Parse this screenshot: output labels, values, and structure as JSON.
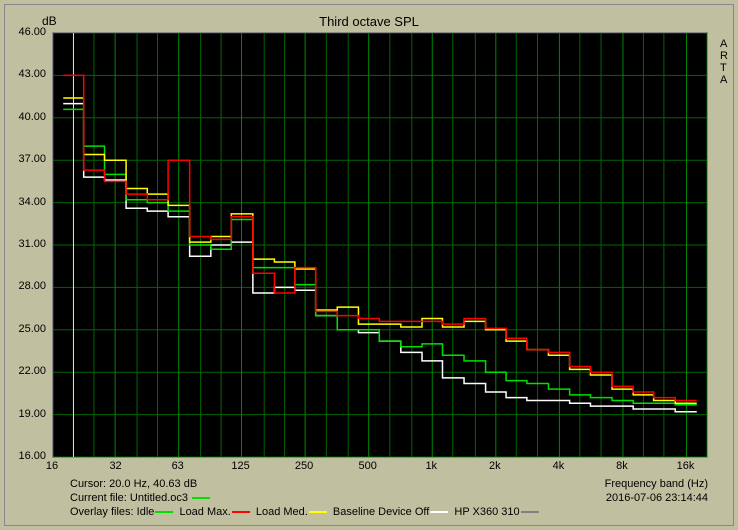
{
  "title": "Third octave SPL",
  "y_axis_label": "dB",
  "x_axis_label": "Frequency band (Hz)",
  "branding": "A\nR\nT\nA",
  "datetime": "2016-07-06  23:14:44",
  "cursor_text": "Cursor:   20.0 Hz, 40.63 dB",
  "current_file_label": "Current file: ",
  "current_file_name": "Untitled.oc3",
  "overlay_label": "Overlay files:",
  "yaxis": {
    "min": 16.0,
    "max": 46.0,
    "ticks": [
      16.0,
      19.0,
      22.0,
      25.0,
      28.0,
      31.0,
      34.0,
      37.0,
      40.0,
      43.0,
      46.0
    ]
  },
  "xaxis": {
    "labels": [
      "16",
      "32",
      "63",
      "125",
      "250",
      "500",
      "1k",
      "2k",
      "4k",
      "8k",
      "16k"
    ],
    "values_hz": [
      16,
      32,
      63,
      125,
      250,
      500,
      1000,
      2000,
      4000,
      8000,
      16000
    ]
  },
  "band_centers_hz": [
    16,
    20,
    25,
    31.5,
    40,
    50,
    63,
    80,
    100,
    125,
    160,
    200,
    250,
    315,
    400,
    500,
    630,
    800,
    1000,
    1250,
    1600,
    2000,
    2500,
    3150,
    4000,
    5000,
    6300,
    8000,
    10000,
    12500,
    16000,
    20000
  ],
  "cursor_band_index": 1,
  "cursor_color": "#ffff00",
  "plot": {
    "background": "#000000",
    "grid_color": "#006600",
    "grid_major_color": "#008800"
  },
  "series": [
    {
      "name": "Idle",
      "color": "#00e000",
      "values": [
        null,
        40.6,
        38.0,
        36.0,
        34.2,
        34.0,
        33.4,
        31.0,
        30.7,
        32.8,
        29.4,
        29.4,
        28.2,
        26.0,
        25.0,
        25.0,
        24.2,
        23.8,
        24.0,
        23.2,
        22.8,
        22.0,
        21.4,
        21.2,
        20.8,
        20.4,
        20.2,
        20.0,
        19.8,
        19.8,
        19.7,
        null
      ]
    },
    {
      "name": "Load Max.",
      "color": "#ff0000",
      "values": [
        null,
        43.0,
        36.3,
        35.5,
        34.6,
        34.2,
        37.0,
        31.6,
        31.4,
        33.0,
        29.0,
        27.6,
        29.4,
        26.3,
        26.0,
        25.8,
        25.6,
        25.6,
        25.6,
        25.4,
        25.8,
        25.1,
        24.4,
        23.6,
        23.4,
        22.4,
        22.0,
        21.0,
        20.6,
        20.2,
        20.0,
        null
      ]
    },
    {
      "name": "Load Med.",
      "color": "#ffff00",
      "values": [
        null,
        41.4,
        37.4,
        37.0,
        35.0,
        34.6,
        33.8,
        31.2,
        31.6,
        33.2,
        30.0,
        29.8,
        29.3,
        26.4,
        26.6,
        25.4,
        25.4,
        25.2,
        25.8,
        25.2,
        25.6,
        25.0,
        24.2,
        23.6,
        23.2,
        22.2,
        21.8,
        20.8,
        20.4,
        20.0,
        19.8,
        null
      ]
    },
    {
      "name": "Baseline Device Off",
      "color": "#ffffff",
      "values": [
        null,
        41.0,
        35.8,
        35.6,
        33.6,
        33.4,
        33.0,
        30.2,
        31.0,
        31.2,
        27.6,
        28.0,
        27.8,
        26.0,
        25.0,
        24.8,
        24.2,
        23.4,
        22.8,
        21.6,
        21.2,
        20.6,
        20.2,
        20.0,
        20.0,
        19.8,
        19.6,
        19.6,
        19.4,
        19.4,
        19.2,
        null
      ]
    },
    {
      "name": "HP X360 310",
      "color": "#808080",
      "values": [
        null,
        null,
        null,
        null,
        null,
        null,
        null,
        null,
        null,
        null,
        null,
        null,
        null,
        null,
        null,
        null,
        null,
        null,
        null,
        null,
        null,
        null,
        null,
        null,
        null,
        null,
        null,
        null,
        null,
        null,
        null,
        null
      ]
    }
  ]
}
